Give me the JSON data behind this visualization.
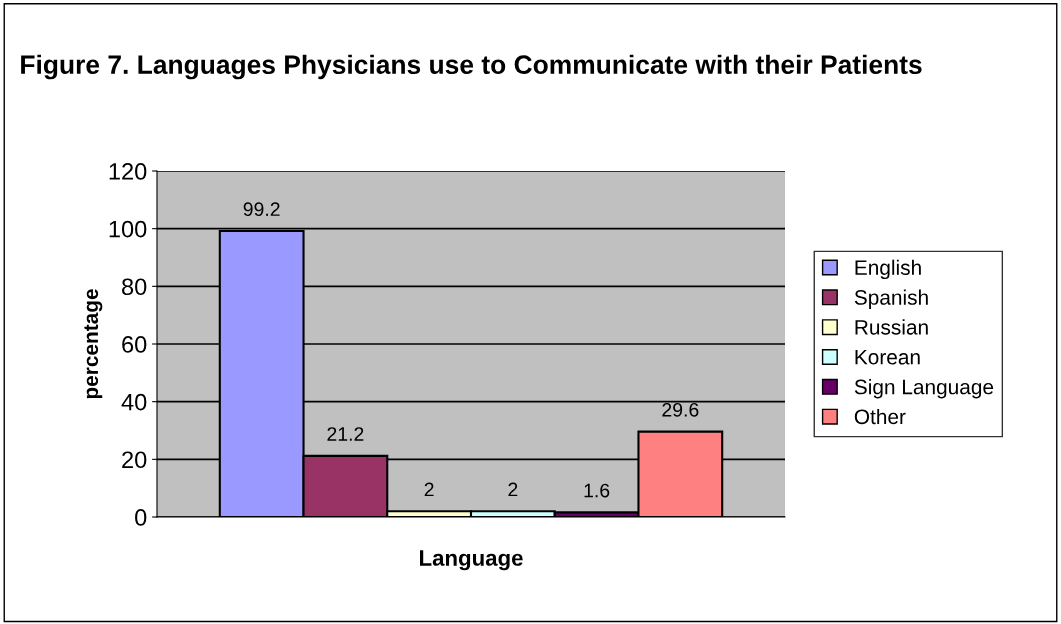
{
  "chart_data": {
    "type": "bar",
    "title": "Figure 7. Languages Physicians use to Communicate with their Patients",
    "xlabel": "Language",
    "ylabel": "percentage",
    "categories": [
      null
    ],
    "series": [
      {
        "name": "English",
        "color": "#9999ff",
        "values": [
          99.2
        ]
      },
      {
        "name": "Spanish",
        "color": "#993366",
        "values": [
          21.2
        ]
      },
      {
        "name": "Russian",
        "color": "#ffffcc",
        "values": [
          2
        ]
      },
      {
        "name": "Korean",
        "color": "#ccffff",
        "values": [
          2
        ]
      },
      {
        "name": "Sign Language",
        "color": "#660066",
        "values": [
          1.6
        ]
      },
      {
        "name": "Other",
        "color": "#ff8080",
        "values": [
          29.6
        ]
      }
    ],
    "ylim": [
      0,
      120
    ],
    "yticks": [
      0,
      20,
      40,
      60,
      80,
      100,
      120
    ],
    "grid": "y",
    "legend": "right",
    "data_labels": true
  }
}
